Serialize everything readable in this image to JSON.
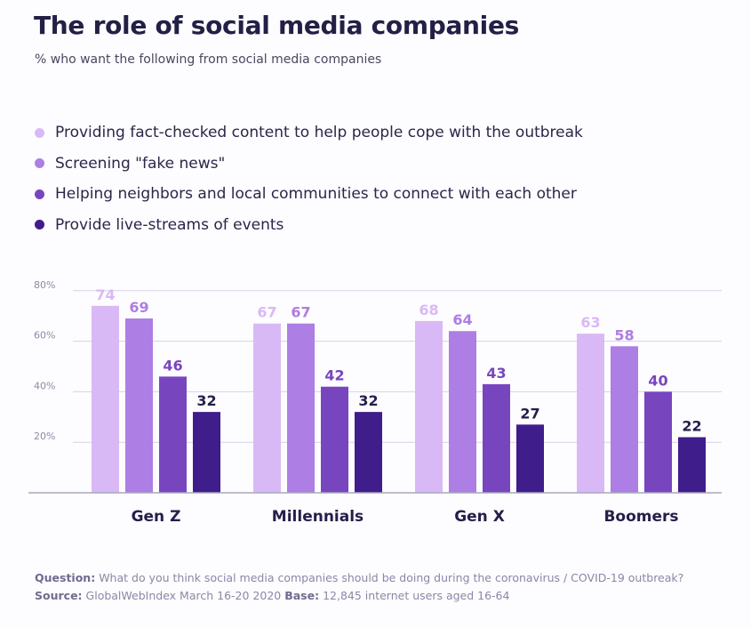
{
  "header": {
    "title": "The role of social media companies",
    "subtitle": "% who want the following from social media companies"
  },
  "colors": {
    "series": [
      "#d9b9f5",
      "#ad7ee3",
      "#7746bf",
      "#3f1d8a"
    ],
    "gridline": "#d6d2e8",
    "axis": "#aaa7c4",
    "label_text": "#241f4a",
    "tick_text": "#8e8aa8",
    "background": "#fdfcfe"
  },
  "chart_data": {
    "type": "bar",
    "title": "The role of social media companies",
    "subtitle": "% who want the following from social media companies",
    "categories": [
      "Gen Z",
      "Millennials",
      "Gen X",
      "Boomers"
    ],
    "series": [
      {
        "name": "Providing fact-checked content to help people cope with the outbreak",
        "values": [
          74,
          67,
          68,
          63
        ]
      },
      {
        "name": "Screening \"fake news\"",
        "values": [
          69,
          67,
          64,
          58
        ]
      },
      {
        "name": "Helping neighbors and local communities to connect with each other",
        "values": [
          46,
          42,
          43,
          40
        ]
      },
      {
        "name": "Provide live-streams of events",
        "values": [
          32,
          32,
          27,
          22
        ]
      }
    ],
    "yticks": [
      {
        "value": 20,
        "label": "20%"
      },
      {
        "value": 40,
        "label": "40%"
      },
      {
        "value": 60,
        "label": "60%"
      },
      {
        "value": 80,
        "label": "80%"
      }
    ],
    "ylim": [
      0,
      80
    ],
    "xlabel": "",
    "ylabel": "",
    "grid": true,
    "legend": "top"
  },
  "footer": {
    "question_label": "Question:",
    "question_text": "What do you think social media companies should be doing during the coronavirus / COVID-19 outbreak?",
    "source_label": "Source:",
    "source_text": "GlobalWebIndex March 16-20 2020",
    "base_label": "Base:",
    "base_text": "12,845 internet users aged 16-64"
  }
}
